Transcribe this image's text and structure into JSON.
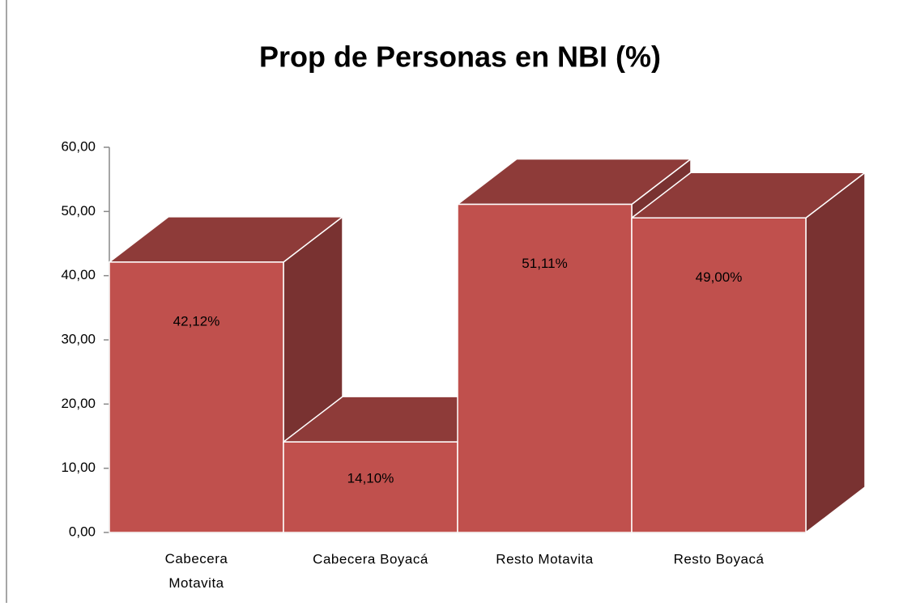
{
  "chart_data": {
    "type": "bar3d",
    "title": "Prop de Personas en NBI (%)",
    "categories": [
      "Cabecera Motavita",
      "Cabecera Boyacá",
      "Resto Motavita",
      "Resto Boyacá"
    ],
    "values": [
      42.12,
      14.1,
      51.11,
      49.0
    ],
    "value_labels": [
      "42,12%",
      "14,10%",
      "51,11%",
      "49,00%"
    ],
    "color": "#c0504d",
    "ylim": [
      0,
      60
    ],
    "yticks": [
      {
        "value": 0,
        "label": "0,00"
      },
      {
        "value": 10,
        "label": "10,00"
      },
      {
        "value": 20,
        "label": "20,00"
      },
      {
        "value": 30,
        "label": "30,00"
      },
      {
        "value": 40,
        "label": "40,00"
      },
      {
        "value": 50,
        "label": "50,00"
      },
      {
        "value": 60,
        "label": "60,00"
      }
    ]
  }
}
